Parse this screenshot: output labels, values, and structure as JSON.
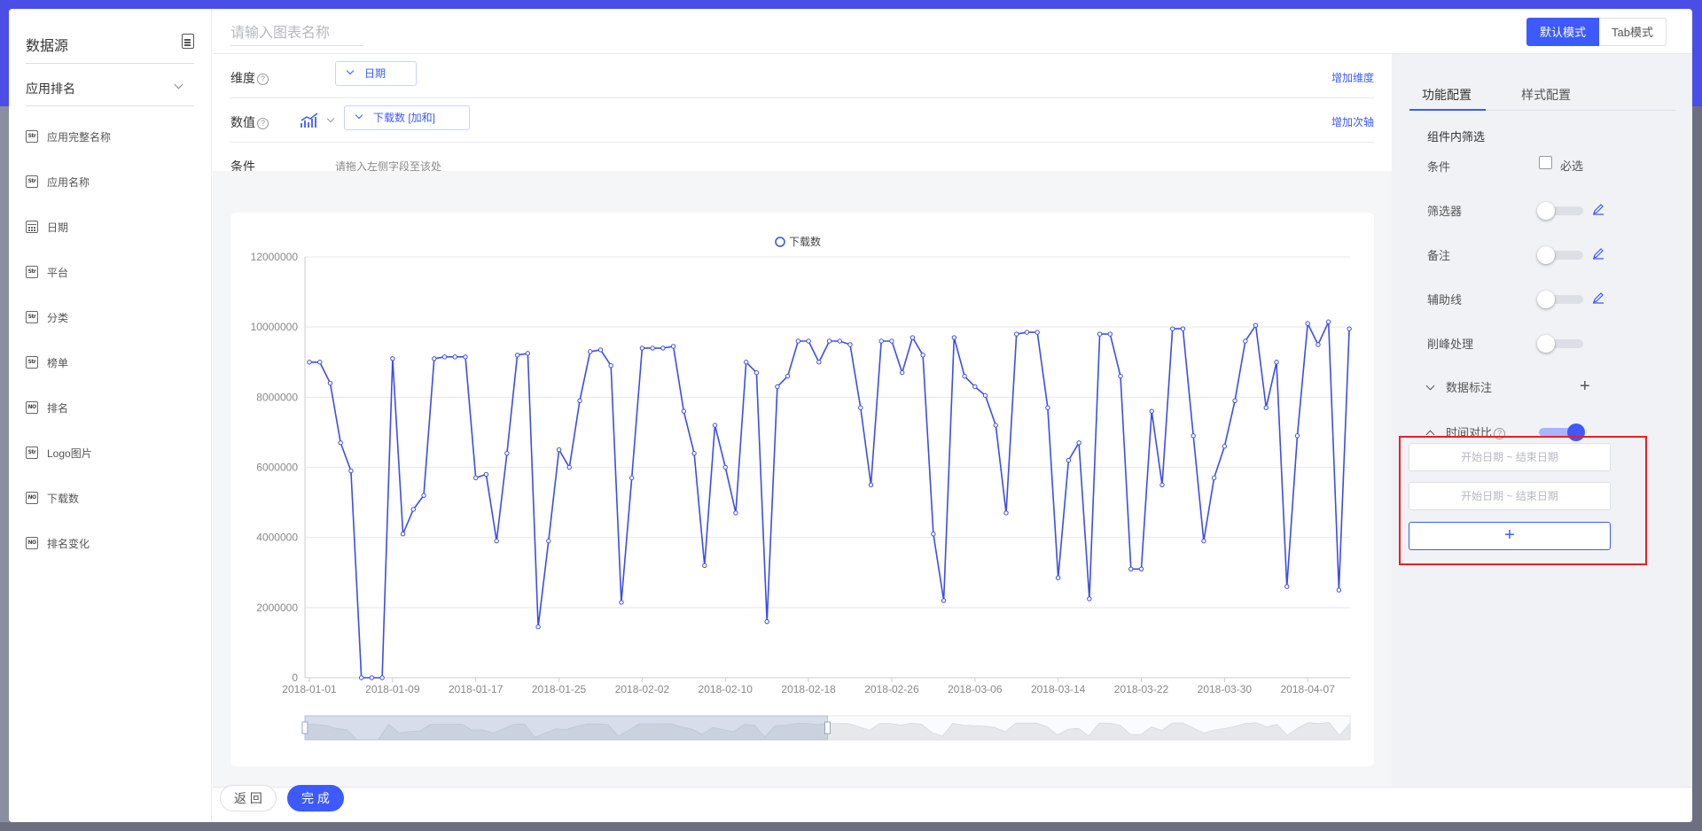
{
  "sidebar": {
    "title": "数据源",
    "dataset": "应用排名",
    "fields": [
      {
        "type": "Str",
        "label": "应用完整名称"
      },
      {
        "type": "Str",
        "label": "应用名称"
      },
      {
        "type": "date",
        "label": "日期"
      },
      {
        "type": "Str",
        "label": "平台"
      },
      {
        "type": "Str",
        "label": "分类"
      },
      {
        "type": "Str",
        "label": "榜单"
      },
      {
        "type": "NO",
        "label": "排名"
      },
      {
        "type": "Str",
        "label": "Logo图片"
      },
      {
        "type": "NO",
        "label": "下载数"
      },
      {
        "type": "NO",
        "label": "排名变化"
      }
    ]
  },
  "header": {
    "title_placeholder": "请输入图表名称",
    "mode_default": "默认模式",
    "mode_tab": "Tab模式"
  },
  "config": {
    "dimension_label": "维度",
    "dimension_value": "日期",
    "dimension_add": "增加维度",
    "value_label": "数值",
    "value_value": "下载数 [加和]",
    "value_add": "增加次轴",
    "condition_label": "条件",
    "condition_hint": "请拖入左侧字段至该处"
  },
  "right_panel": {
    "tab_function": "功能配置",
    "tab_style": "样式配置",
    "section_title": "组件内筛选",
    "condition": "条件",
    "required": "必选",
    "filter": "筛选器",
    "note": "备注",
    "guide_line": "辅助线",
    "peak_clip": "削峰处理",
    "data_label": "数据标注",
    "time_compare": "时间对比",
    "date_range_placeholder_1": "开始日期 ~ 结束日期",
    "date_range_placeholder_2": "开始日期 ~ 结束日期",
    "add_symbol": "+"
  },
  "footer": {
    "back": "返 回",
    "done": "完 成"
  },
  "colors": {
    "accent": "#3d5afe",
    "line": "#3d4de6",
    "highlight_box": "#ee1c25"
  },
  "chart_data": {
    "type": "line",
    "legend": "下载数",
    "x_tick_labels": [
      "2018-01-01",
      "2018-01-09",
      "2018-01-17",
      "2018-01-25",
      "2018-02-02",
      "2018-02-10",
      "2018-02-18",
      "2018-02-26",
      "2018-03-06",
      "2018-03-14",
      "2018-03-22",
      "2018-03-30",
      "2018-04-07"
    ],
    "y_tick_labels": [
      "0",
      "2000000",
      "4000000",
      "6000000",
      "8000000",
      "10000000",
      "12000000"
    ],
    "ylim": [
      0,
      12000000
    ],
    "grid": true,
    "x_start": "2018-01-01",
    "x_end": "2018-04-10",
    "values": [
      9000000,
      9000000,
      8400000,
      6700000,
      5900000,
      0,
      0,
      0,
      9100000,
      4100000,
      4800000,
      5200000,
      9100000,
      9150000,
      9150000,
      9150000,
      5700000,
      5800000,
      3900000,
      6400000,
      9200000,
      9250000,
      1450000,
      3900000,
      6500000,
      6000000,
      7900000,
      9300000,
      9350000,
      8900000,
      2150000,
      5700000,
      9400000,
      9400000,
      9400000,
      9450000,
      7600000,
      6400000,
      3200000,
      7200000,
      6000000,
      4700000,
      9000000,
      8700000,
      1600000,
      8300000,
      8600000,
      9600000,
      9600000,
      9000000,
      9600000,
      9600000,
      9500000,
      7700000,
      5500000,
      9600000,
      9600000,
      8700000,
      9700000,
      9200000,
      4100000,
      2200000,
      9700000,
      8600000,
      8300000,
      8050000,
      7200000,
      4700000,
      9800000,
      9850000,
      9850000,
      7700000,
      2850000,
      6200000,
      6700000,
      2250000,
      9800000,
      9800000,
      8600000,
      3100000,
      3100000,
      7600000,
      5500000,
      9950000,
      9950000,
      6900000,
      3900000,
      5700000,
      6600000,
      7900000,
      9600000,
      10050000,
      7700000,
      9000000,
      2600000,
      6900000,
      10100000,
      9500000,
      10150000,
      2500000,
      9950000
    ]
  }
}
